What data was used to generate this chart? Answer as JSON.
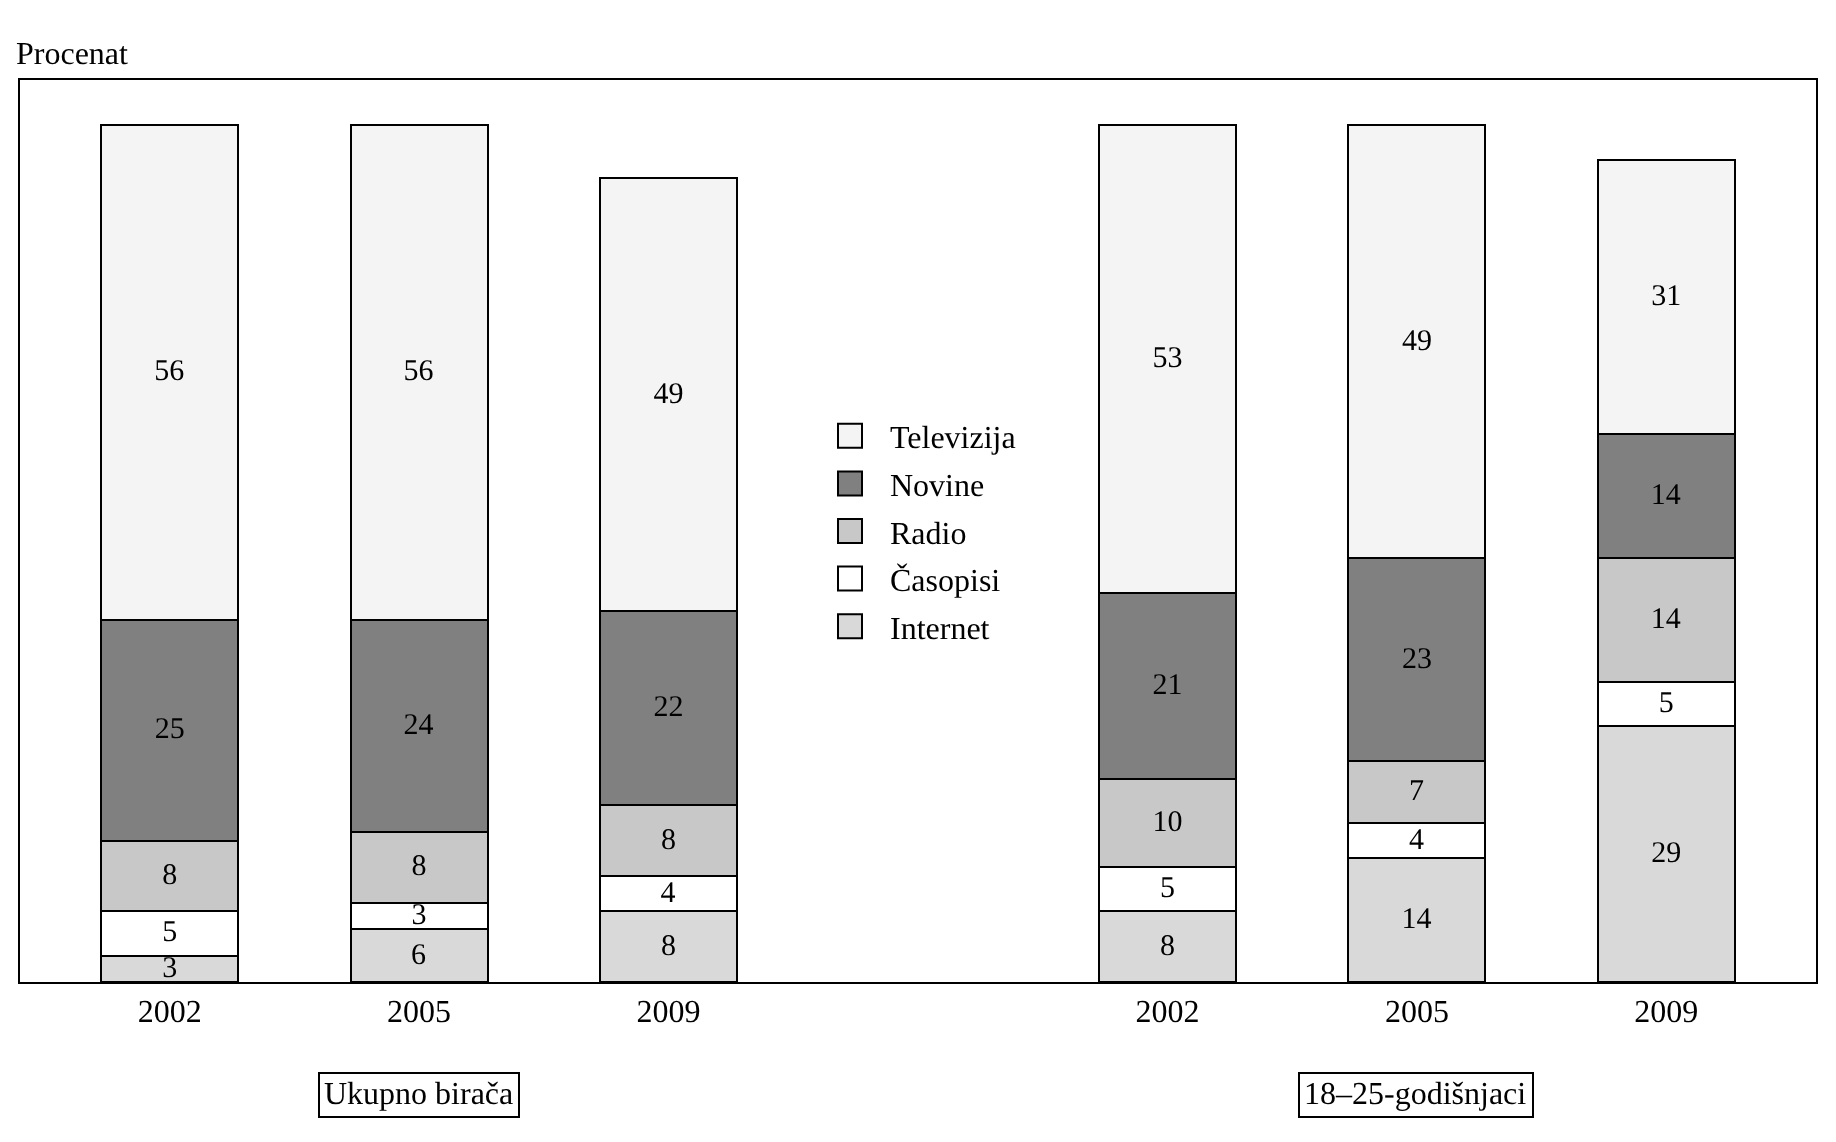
{
  "chart_data": {
    "type": "bar",
    "stacked": true,
    "ylabel": "Procenat",
    "categories": [
      "2002",
      "2005",
      "2009",
      null,
      "2002",
      "2005",
      "2009"
    ],
    "series": [
      {
        "name": "Internet",
        "color": "#d9d9d9",
        "values": [
          3,
          6,
          8,
          null,
          8,
          14,
          29
        ]
      },
      {
        "name": "Časopisi",
        "color": "#ffffff",
        "values": [
          5,
          3,
          4,
          null,
          5,
          4,
          5
        ]
      },
      {
        "name": "Radio",
        "color": "#c8c8c8",
        "values": [
          8,
          8,
          8,
          null,
          10,
          7,
          14
        ]
      },
      {
        "name": "Novine",
        "color": "#808080",
        "values": [
          25,
          24,
          22,
          null,
          21,
          23,
          14
        ]
      },
      {
        "name": "Televizija",
        "color": "#f4f4f4",
        "values": [
          56,
          56,
          49,
          null,
          53,
          49,
          31
        ]
      }
    ],
    "data_labels": true,
    "legend": "center",
    "grid": false,
    "tick_labels": "x",
    "annotations": [
      "Ukupno birača",
      "18–25-godišnjaci"
    ]
  }
}
